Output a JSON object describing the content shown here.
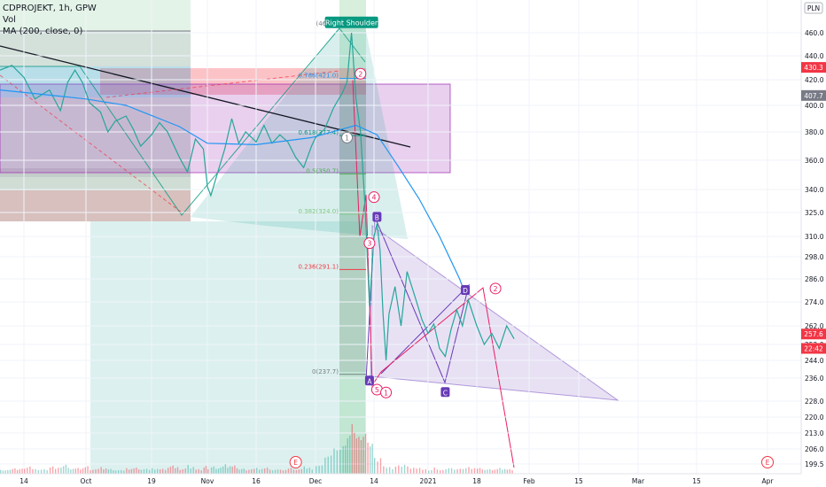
{
  "header": {
    "symbol_line": "CDPROJEKT, 1h, GPW",
    "volume_label": "Vol",
    "ma_label": "MA (200, close, 0)"
  },
  "currency": "PLN",
  "chart_data": {
    "type": "line",
    "title": "CDPROJEKT, 1h, GPW",
    "xlabel": "",
    "ylabel": "",
    "y_axis_side": "right",
    "ylim": [
      195,
      470
    ],
    "y_ticks": [
      199.5,
      206.0,
      213.0,
      220.0,
      228.0,
      236.0,
      244.0,
      252.0,
      262.0,
      274.0,
      286.0,
      298.0,
      310.0,
      325.0,
      340.0,
      360.0,
      380.0,
      400.0,
      420.0,
      440.0,
      460.0
    ],
    "x_ticks": [
      {
        "label": "14",
        "date": "2020-09-14"
      },
      {
        "label": "Oct",
        "date": "2020-10-01"
      },
      {
        "label": "19",
        "date": "2020-10-19"
      },
      {
        "label": "Nov",
        "date": "2020-11-02"
      },
      {
        "label": "16",
        "date": "2020-11-16"
      },
      {
        "label": "Dec",
        "date": "2020-12-01"
      },
      {
        "label": "14",
        "date": "2020-12-14"
      },
      {
        "label": "2021",
        "date": "2021-01-01"
      },
      {
        "label": "18",
        "date": "2021-01-18"
      },
      {
        "label": "Feb",
        "date": "2021-02-01"
      },
      {
        "label": "15",
        "date": "2021-02-15"
      },
      {
        "label": "Mar",
        "date": "2021-03-01"
      },
      {
        "label": "15",
        "date": "2021-03-15"
      },
      {
        "label": "Apr",
        "date": "2021-04-01"
      }
    ],
    "price_series": {
      "name": "CDPROJEKT",
      "color": "#26a69a",
      "points": [
        [
          "2020-09-08",
          428
        ],
        [
          "2020-09-11",
          432
        ],
        [
          "2020-09-14",
          422
        ],
        [
          "2020-09-17",
          405
        ],
        [
          "2020-09-21",
          412
        ],
        [
          "2020-09-24",
          396
        ],
        [
          "2020-09-26",
          418
        ],
        [
          "2020-09-28",
          428
        ],
        [
          "2020-09-30",
          418
        ],
        [
          "2020-10-02",
          402
        ],
        [
          "2020-10-05",
          395
        ],
        [
          "2020-10-07",
          380
        ],
        [
          "2020-10-09",
          388
        ],
        [
          "2020-10-12",
          392
        ],
        [
          "2020-10-14",
          382
        ],
        [
          "2020-10-16",
          370
        ],
        [
          "2020-10-19",
          378
        ],
        [
          "2020-10-21",
          387
        ],
        [
          "2020-10-23",
          380
        ],
        [
          "2020-10-26",
          362
        ],
        [
          "2020-10-28",
          352
        ],
        [
          "2020-10-30",
          375
        ],
        [
          "2020-11-01",
          368
        ],
        [
          "2020-11-02",
          342
        ],
        [
          "2020-11-03",
          336
        ],
        [
          "2020-11-05",
          352
        ],
        [
          "2020-11-07",
          368
        ],
        [
          "2020-11-09",
          390
        ],
        [
          "2020-11-11",
          372
        ],
        [
          "2020-11-13",
          380
        ],
        [
          "2020-11-16",
          373
        ],
        [
          "2020-11-18",
          385
        ],
        [
          "2020-11-20",
          372
        ],
        [
          "2020-11-22",
          378
        ],
        [
          "2020-11-24",
          373
        ],
        [
          "2020-11-26",
          362
        ],
        [
          "2020-11-28",
          355
        ],
        [
          "2020-11-30",
          370
        ],
        [
          "2020-12-01",
          376
        ],
        [
          "2020-12-03",
          382
        ],
        [
          "2020-12-05",
          398
        ],
        [
          "2020-12-07",
          410
        ],
        [
          "2020-12-08",
          418
        ],
        [
          "2020-12-09",
          460
        ],
        [
          "2020-12-10",
          405
        ],
        [
          "2020-12-11",
          380
        ],
        [
          "2020-12-12",
          330
        ],
        [
          "2020-12-13",
          272
        ],
        [
          "2020-12-14",
          310
        ],
        [
          "2020-12-15",
          318
        ],
        [
          "2020-12-16",
          302
        ],
        [
          "2020-12-17",
          268
        ],
        [
          "2020-12-18",
          244
        ],
        [
          "2020-12-19",
          268
        ],
        [
          "2020-12-21",
          282
        ],
        [
          "2020-12-23",
          262
        ],
        [
          "2020-12-25",
          290
        ],
        [
          "2020-12-28",
          275
        ],
        [
          "2020-12-30",
          265
        ],
        [
          "2021-01-01",
          258
        ],
        [
          "2021-01-03",
          263
        ],
        [
          "2021-01-05",
          250
        ],
        [
          "2021-01-07",
          246
        ],
        [
          "2021-01-09",
          260
        ],
        [
          "2021-01-11",
          270
        ],
        [
          "2021-01-13",
          262
        ],
        [
          "2021-01-15",
          275
        ],
        [
          "2021-01-18",
          262
        ],
        [
          "2021-01-20",
          252
        ],
        [
          "2021-01-22",
          258
        ],
        [
          "2021-01-24",
          250
        ],
        [
          "2021-01-26",
          262
        ],
        [
          "2021-01-28",
          255
        ]
      ]
    },
    "ma_series": {
      "name": "MA (200, close, 0)",
      "color": "#2196f3",
      "points": [
        [
          "2020-09-08",
          412
        ],
        [
          "2020-09-21",
          408
        ],
        [
          "2020-10-01",
          405
        ],
        [
          "2020-10-12",
          400
        ],
        [
          "2020-10-26",
          384
        ],
        [
          "2020-11-02",
          372
        ],
        [
          "2020-11-16",
          371
        ],
        [
          "2020-11-30",
          376
        ],
        [
          "2020-12-10",
          385
        ],
        [
          "2020-12-15",
          378
        ],
        [
          "2020-12-22",
          356
        ],
        [
          "2020-12-29",
          334
        ],
        [
          "2021-01-05",
          310
        ],
        [
          "2021-01-12",
          286
        ],
        [
          "2021-01-14",
          278
        ]
      ]
    },
    "volume_peak_date": "2020-12-10",
    "annotations": [
      {
        "kind": "label",
        "text": "Right Shoulder",
        "date": "2020-12-09",
        "price": 466,
        "color": "#089981"
      },
      {
        "kind": "fib",
        "text": "(465.7)",
        "price": 465.7,
        "color": "#787b86"
      },
      {
        "kind": "fib",
        "text": "0.786(421.0)",
        "price": 421.0,
        "color": "#2196f3"
      },
      {
        "kind": "fib",
        "text": "0.618(377.4)",
        "price": 377.4,
        "color": "#089981"
      },
      {
        "kind": "fib",
        "text": "0.5(350.7)",
        "price": 350.7,
        "color": "#4caf50"
      },
      {
        "kind": "fib",
        "text": "0.382(324.0)",
        "price": 324.0,
        "color": "#81c784"
      },
      {
        "kind": "fib",
        "text": "0.236(291.1)",
        "price": 291.1,
        "color": "#f23645"
      },
      {
        "kind": "fib",
        "text": "0(237.7)",
        "price": 237.7,
        "color": "#787b86"
      },
      {
        "kind": "wave",
        "text": "1",
        "date": "2020-12-08",
        "price": 376,
        "color": "#787b86"
      },
      {
        "kind": "wave",
        "text": "2",
        "date": "2020-12-11",
        "price": 425,
        "color": "#e91e63"
      },
      {
        "kind": "wave",
        "text": "3",
        "date": "2020-12-13",
        "price": 306,
        "color": "#e91e63"
      },
      {
        "kind": "wave",
        "text": "4",
        "date": "2020-12-14",
        "price": 335,
        "color": "#e91e63"
      },
      {
        "kind": "wave",
        "text": "5",
        "date": "2020-12-15",
        "price": 232,
        "color": "#e91e63"
      },
      {
        "kind": "wave",
        "text": "1",
        "date": "2020-12-18",
        "price": 231,
        "color": "#e91e63"
      },
      {
        "kind": "wave",
        "text": "2",
        "date": "2021-01-23",
        "price": 281,
        "color": "#e91e63"
      },
      {
        "kind": "point",
        "text": "A",
        "date": "2020-12-13",
        "price": 235,
        "color": "#673ab7"
      },
      {
        "kind": "point",
        "text": "B",
        "date": "2020-12-15",
        "price": 322,
        "color": "#673ab7"
      },
      {
        "kind": "point",
        "text": "C",
        "date": "2021-01-07",
        "price": 231,
        "color": "#673ab7"
      },
      {
        "kind": "point",
        "text": "D",
        "date": "2021-01-14",
        "price": 280,
        "color": "#673ab7"
      },
      {
        "kind": "earnings",
        "text": "E",
        "date": "2020-11-26",
        "color": "#f23645"
      },
      {
        "kind": "earnings",
        "text": "E",
        "date": "2021-04-01",
        "color": "#f23645"
      }
    ],
    "price_badges": [
      {
        "text": "430.3",
        "price": 430.3,
        "color": "#f23645"
      },
      {
        "text": "407.7",
        "price": 407.7,
        "color": "#787b86"
      },
      {
        "text": "257.6",
        "price": 257.6,
        "color": "#f23645"
      },
      {
        "text": "22:42",
        "price": 250.0,
        "color": "#f23645"
      }
    ]
  }
}
